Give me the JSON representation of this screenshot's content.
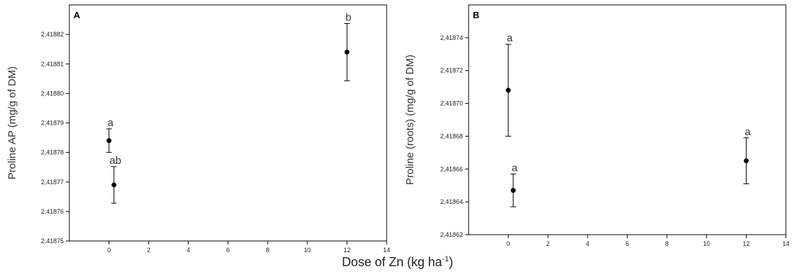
{
  "chart_data": [
    {
      "type": "scatter",
      "panel_label": "A",
      "ylabel": "Proline AP (mg/g of DM)",
      "xlim": [
        -2,
        14
      ],
      "ylim": [
        2.41875,
        2.41883
      ],
      "xticks": [
        "0",
        "2",
        "4",
        "6",
        "8",
        "10",
        "12",
        "14"
      ],
      "yticks": [
        "2,41875",
        "2,41876",
        "2,41877",
        "2,41878",
        "2,41879",
        "2,41880",
        "2,41881",
        "2,41882"
      ],
      "points": [
        {
          "x": 0,
          "y": 2.418784,
          "err": 4e-06,
          "label": "a"
        },
        {
          "x": 0.25,
          "y": 2.418769,
          "err": 6.2e-06,
          "label": "ab"
        },
        {
          "x": 12,
          "y": 2.418814,
          "err": 9.7e-06,
          "label": "b"
        }
      ],
      "error_bars": true,
      "grid": false
    },
    {
      "type": "scatter",
      "panel_label": "B",
      "ylabel": "Proline (roots) (mg/g of DM)",
      "xlim": [
        -2,
        14
      ],
      "ylim": [
        2.41862,
        2.41876
      ],
      "xticks": [
        "0",
        "2",
        "4",
        "6",
        "8",
        "10",
        "12",
        "14"
      ],
      "yticks": [
        "2,41862",
        "2,41864",
        "2,41866",
        "2,41868",
        "2,41870",
        "2,41872",
        "2,41874"
      ],
      "points": [
        {
          "x": 0,
          "y": 2.418708,
          "err": 2.8e-05,
          "label": "a"
        },
        {
          "x": 0.25,
          "y": 2.418647,
          "err": 1e-05,
          "label": "a"
        },
        {
          "x": 12,
          "y": 2.418665,
          "err": 1.4e-05,
          "label": "a"
        }
      ],
      "error_bars": true,
      "grid": false
    }
  ],
  "shared_xlabel": {
    "main": "Dose of Zn (kg ha",
    "superscript": "-1",
    "close": ")"
  }
}
